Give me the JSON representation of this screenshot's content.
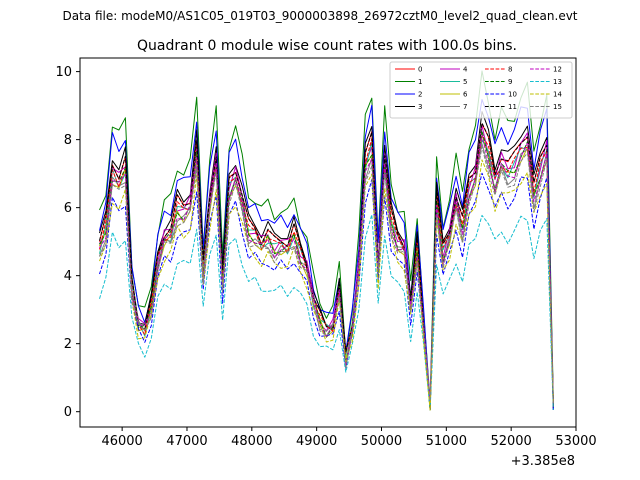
{
  "chart_data": {
    "type": "line",
    "suptitle": "Data file: modeM0/AS1C05_019T03_9000003898_26972cztM0_level2_quad_clean.evt",
    "title": "Quadrant 0 module wise count rates with 100.0s bins.",
    "xlabel": "",
    "ylabel": "",
    "x_offset_label": "+3.385e8",
    "xlim": [
      45350,
      53000
    ],
    "ylim": [
      -0.45,
      10.4
    ],
    "x_ticks": [
      46000,
      47000,
      48000,
      49000,
      50000,
      51000,
      52000,
      53000
    ],
    "y_ticks": [
      0,
      2,
      4,
      6,
      8,
      10
    ],
    "legend_position": "top-right",
    "x": [
      45650,
      45750,
      45850,
      45950,
      46050,
      46150,
      46250,
      46350,
      46450,
      46550,
      46650,
      46750,
      46850,
      46950,
      47050,
      47150,
      47250,
      47350,
      47450,
      47550,
      47650,
      47750,
      47850,
      47950,
      48050,
      48150,
      48250,
      48350,
      48450,
      48550,
      48650,
      48750,
      48850,
      48950,
      49050,
      49150,
      49250,
      49350,
      49450,
      49550,
      49650,
      49750,
      49850,
      49950,
      50050,
      50150,
      50250,
      50350,
      50450,
      50550,
      50650,
      50750,
      50850,
      50950,
      51050,
      51150,
      51250,
      51350,
      51450,
      51550,
      51650,
      51750,
      51850,
      51950,
      52050,
      52150,
      52250,
      52350,
      52450,
      52550,
      52650
    ],
    "base_profile": [
      5.0,
      5.6,
      7.3,
      7.0,
      7.4,
      3.8,
      2.7,
      2.5,
      3.2,
      4.6,
      5.3,
      5.4,
      6.2,
      6.1,
      6.3,
      7.9,
      4.3,
      6.4,
      7.6,
      4.0,
      6.8,
      7.2,
      6.4,
      5.5,
      5.4,
      5.1,
      5.3,
      5.0,
      5.1,
      5.0,
      5.4,
      4.8,
      4.4,
      3.4,
      2.8,
      2.5,
      2.6,
      3.7,
      1.6,
      2.6,
      4.4,
      7.5,
      8.1,
      4.4,
      7.6,
      5.8,
      5.2,
      5.0,
      3.2,
      5.0,
      2.6,
      0.15,
      6.4,
      4.8,
      5.4,
      6.4,
      5.6,
      6.8,
      7.2,
      8.5,
      7.9,
      7.0,
      7.6,
      7.3,
      7.5,
      8.0,
      8.2,
      6.6,
      7.4,
      8.0,
      0.18
    ],
    "series": [
      {
        "name": "0",
        "color": "#ff0000",
        "dash": "solid",
        "scale": 1.0
      },
      {
        "name": "1",
        "color": "#008000",
        "dash": "solid",
        "scale": 1.16
      },
      {
        "name": "2",
        "color": "#0000ff",
        "dash": "solid",
        "scale": 1.1
      },
      {
        "name": "3",
        "color": "#000000",
        "dash": "solid",
        "scale": 1.03
      },
      {
        "name": "4",
        "color": "#bf00bf",
        "dash": "solid",
        "scale": 0.98
      },
      {
        "name": "5",
        "color": "#1abc9c",
        "dash": "solid",
        "scale": 0.96
      },
      {
        "name": "6",
        "color": "#bfbf00",
        "dash": "solid",
        "scale": 0.94
      },
      {
        "name": "7",
        "color": "#808080",
        "dash": "solid",
        "scale": 0.93
      },
      {
        "name": "8",
        "color": "#ff0000",
        "dash": "dashed",
        "scale": 0.97
      },
      {
        "name": "9",
        "color": "#008000",
        "dash": "dashed",
        "scale": 0.95
      },
      {
        "name": "10",
        "color": "#0000ff",
        "dash": "dashed",
        "scale": 0.84
      },
      {
        "name": "11",
        "color": "#000000",
        "dash": "dashed",
        "scale": 1.0
      },
      {
        "name": "12",
        "color": "#bf00bf",
        "dash": "dashed",
        "scale": 0.94
      },
      {
        "name": "13",
        "color": "#17becf",
        "dash": "dashed",
        "scale": 0.7
      },
      {
        "name": "14",
        "color": "#bfbf00",
        "dash": "dashed",
        "scale": 0.86
      },
      {
        "name": "15",
        "color": "#808080",
        "dash": "dashed",
        "scale": 0.91
      }
    ]
  }
}
